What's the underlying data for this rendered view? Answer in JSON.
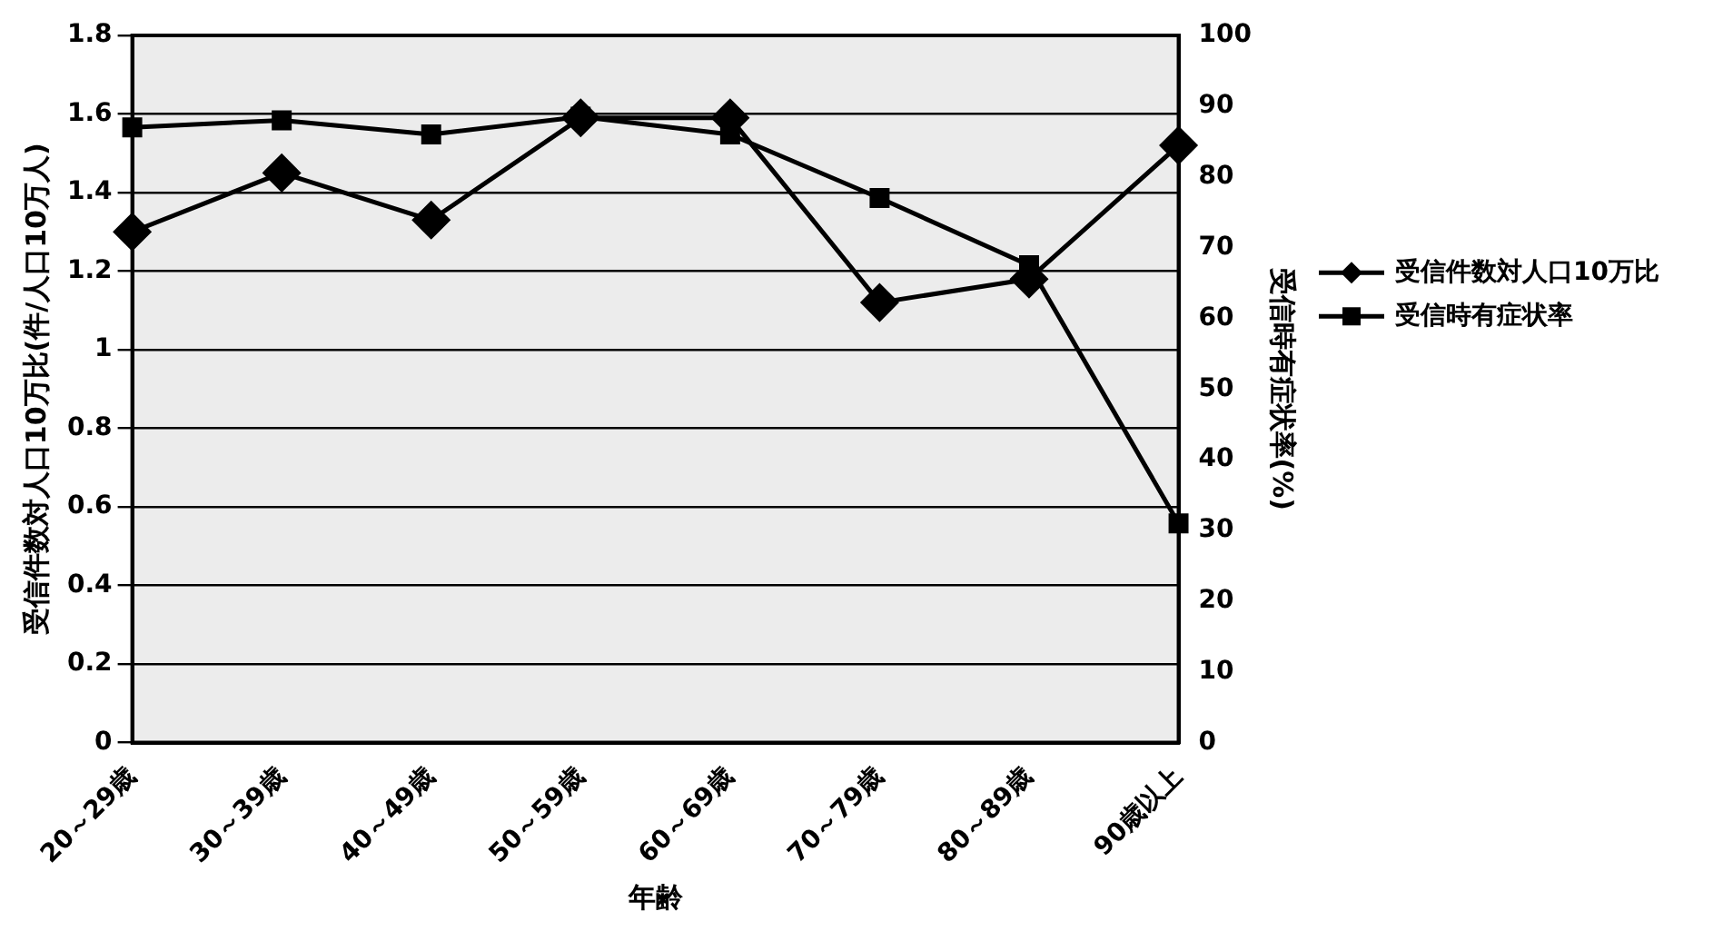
{
  "chart_data": {
    "type": "line",
    "xlabel": "年齢",
    "ylabel": "受信件数対人口10万比(件/人口10万人)",
    "y2label": "受信時有症状率(%)",
    "categories": [
      "20～29歳",
      "30～39歳",
      "40～49歳",
      "50～59歳",
      "60～69歳",
      "70～79歳",
      "80～89歳",
      "90歳以上"
    ],
    "series": [
      {
        "name": "受信件数対人口10万比",
        "color": "#000000",
        "marker": "diamond",
        "values": [
          1.3,
          1.45,
          1.33,
          1.59,
          1.59,
          1.12,
          1.18,
          1.52
        ]
      },
      {
        "name": "受信時有症状率",
        "color": "#000000",
        "marker": "square",
        "axis": "y2",
        "values": [
          87,
          88,
          86,
          88.5,
          86,
          77,
          67.5,
          31
        ]
      }
    ],
    "ylim": [
      0,
      1.8
    ],
    "yticks": [
      0,
      0.2,
      0.4,
      0.6,
      0.8,
      1,
      1.2,
      1.4,
      1.6,
      1.8
    ],
    "y2lim": [
      0,
      100
    ],
    "y2ticks": [
      0,
      10,
      20,
      30,
      40,
      50,
      60,
      70,
      80,
      90,
      100
    ],
    "grid": "y",
    "legend": "right",
    "line_style": "solid"
  }
}
